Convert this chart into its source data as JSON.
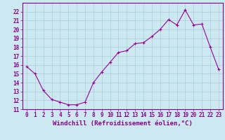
{
  "x": [
    0,
    1,
    2,
    3,
    4,
    5,
    6,
    7,
    8,
    9,
    10,
    11,
    12,
    13,
    14,
    15,
    16,
    17,
    18,
    19,
    20,
    21,
    22,
    23
  ],
  "y": [
    15.8,
    15.0,
    13.1,
    12.1,
    11.8,
    11.5,
    11.5,
    11.8,
    14.0,
    15.2,
    16.3,
    17.4,
    17.6,
    18.4,
    18.5,
    19.2,
    20.0,
    21.1,
    20.5,
    22.2,
    20.5,
    20.6,
    18.0,
    15.5
  ],
  "line_color": "#990099",
  "marker": "+",
  "marker_size": 3,
  "marker_lw": 0.8,
  "line_width": 0.8,
  "bg_color": "#cce8f0",
  "grid_color": "#aaccdd",
  "xlabel": "Windchill (Refroidissement éolien,°C)",
  "ylim": [
    11,
    23
  ],
  "xlim": [
    -0.5,
    23.5
  ],
  "yticks": [
    11,
    12,
    13,
    14,
    15,
    16,
    17,
    18,
    19,
    20,
    21,
    22
  ],
  "xticks": [
    0,
    1,
    2,
    3,
    4,
    5,
    6,
    7,
    8,
    9,
    10,
    11,
    12,
    13,
    14,
    15,
    16,
    17,
    18,
    19,
    20,
    21,
    22,
    23
  ],
  "tick_color": "#880088",
  "tick_fontsize": 5.5,
  "xlabel_fontsize": 6.5,
  "spine_color": "#880088"
}
